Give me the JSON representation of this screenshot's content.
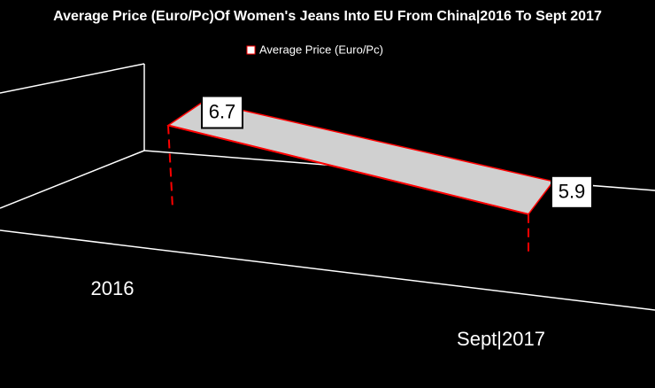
{
  "chart_data": {
    "type": "line3d",
    "title": "Average Price (Euro/Pc)Of Women's Jeans Into EU From China|2016 To Sept 2017",
    "categories": [
      "2016",
      "Sept|2017"
    ],
    "series": [
      {
        "name": "Average Price (Euro/Pc)",
        "color": "#d0d0d0",
        "values": [
          6.7,
          5.9
        ]
      }
    ],
    "ylim": [
      5,
      7
    ]
  }
}
